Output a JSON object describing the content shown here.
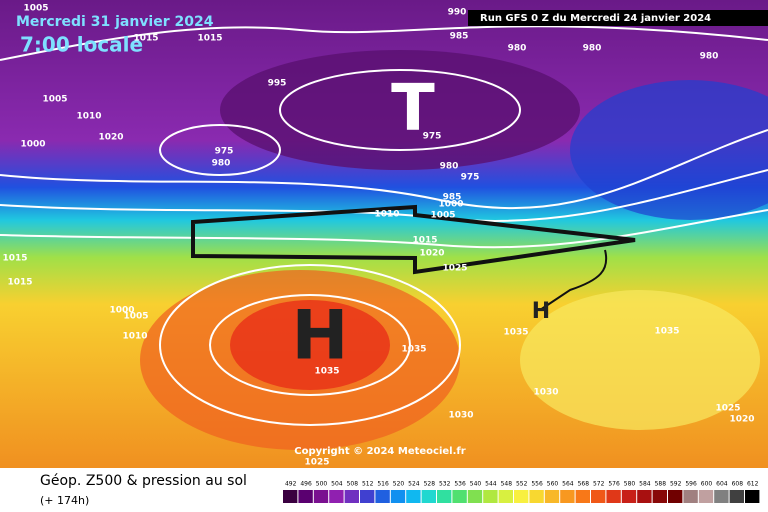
{
  "header": {
    "date": "Mercredi 31 janvier 2024",
    "time": "7:00 locale",
    "run": "Run GFS 0 Z du Mercredi 24 janvier 2024"
  },
  "map": {
    "low_marker": "T",
    "high_marker": "H",
    "high_marker_small": "H",
    "copyright": "Copyright © 2024 Meteociel.fr",
    "isobar_labels": [
      "990",
      "985",
      "980",
      "980",
      "980",
      "1015",
      "1015",
      "1005",
      "995",
      "1005",
      "1010",
      "1020",
      "1000",
      "975",
      "980",
      "975",
      "980",
      "975",
      "985",
      "1000",
      "1010",
      "1005",
      "1015",
      "1020",
      "1025",
      "1015",
      "1015",
      "1000",
      "1005",
      "1010",
      "1035",
      "1035",
      "1035",
      "1035",
      "1030",
      "1030",
      "1025",
      "1020",
      "1025"
    ]
  },
  "footer": {
    "title": "Géop. Z500 & pression au sol",
    "lead": "(+ 174h)"
  },
  "scale": {
    "values": [
      492,
      496,
      500,
      504,
      508,
      512,
      516,
      520,
      524,
      528,
      532,
      536,
      540,
      544,
      548,
      552,
      556,
      560,
      564,
      568,
      572,
      576,
      580,
      584,
      588,
      592,
      596,
      600,
      604,
      608,
      612
    ],
    "colors": [
      "#3a0040",
      "#5a0070",
      "#7a1090",
      "#9020b0",
      "#7030c0",
      "#4040d0",
      "#2060e0",
      "#1090f0",
      "#10b8f0",
      "#20d8d0",
      "#30e0a0",
      "#50e070",
      "#80e050",
      "#b0e840",
      "#d8f040",
      "#f8f040",
      "#f8d830",
      "#f8b828",
      "#f89820",
      "#f87818",
      "#f05818",
      "#e03818",
      "#c82018",
      "#a81010",
      "#880808",
      "#700000",
      "#a08080",
      "#c0a0a0",
      "#808080",
      "#404040",
      "#000000"
    ]
  }
}
